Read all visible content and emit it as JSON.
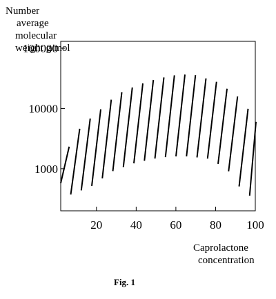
{
  "chart_data": {
    "type": "area",
    "title": "",
    "caption": "Fig. 1",
    "ylabel_lines": [
      "Number",
      "average",
      "molecular",
      "weight  g/mol"
    ],
    "xlabel_lines": [
      "Caprolactone",
      "concentration"
    ],
    "y_scale": "log",
    "ylim": [
      200,
      130000
    ],
    "xlim": [
      2,
      100
    ],
    "y_ticks": [
      1000,
      10000,
      100000
    ],
    "y_tick_labels": [
      "1000",
      "10000",
      "100000"
    ],
    "x_ticks": [
      20,
      40,
      60,
      80,
      100
    ],
    "x_tick_labels": [
      "20",
      "40",
      "60",
      "80",
      "100"
    ],
    "grid": false,
    "legend": "none",
    "hatch_color": "#000000",
    "series": [
      {
        "x": [
          2,
          7,
          12,
          20,
          30,
          40,
          50,
          60,
          68,
          80,
          90,
          96,
          100
        ],
        "upper": [
          1100,
          2800,
          5000,
          8500,
          17000,
          24000,
          31000,
          36000,
          37000,
          28000,
          17000,
          10000,
          6000
        ],
        "lower": [
          800,
          350,
          400,
          520,
          900,
          1200,
          1450,
          1600,
          1600,
          1450,
          850,
          400,
          350
        ]
      }
    ]
  }
}
